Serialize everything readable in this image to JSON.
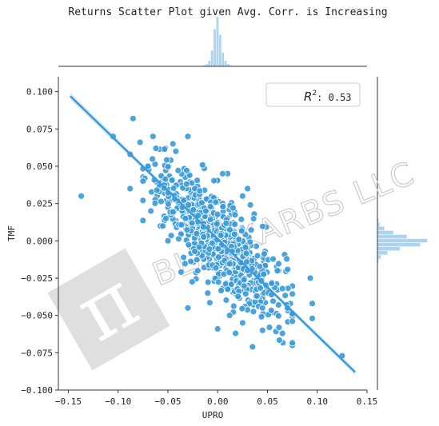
{
  "chart_data": {
    "type": "scatter",
    "title": "Returns Scatter Plot given Avg. Corr. is Increasing",
    "xlabel": "UPRO",
    "ylabel": "TMF",
    "xlim": [
      -0.16,
      0.15
    ],
    "ylim": [
      -0.1,
      0.11
    ],
    "x_ticks": [
      "−0.15",
      "−0.10",
      "−0.05",
      "0.00",
      "0.05",
      "0.10",
      "0.15"
    ],
    "y_ticks": [
      "0.100",
      "0.075",
      "0.050",
      "0.025",
      "0.000",
      "−0.025",
      "−0.050",
      "−0.075",
      "−0.100"
    ],
    "r2_label": "R",
    "r2_sup": "2",
    "r2_value": ": 0.53",
    "regression": {
      "x1": -0.148,
      "y1": 0.097,
      "x2": 0.138,
      "y2": -0.088
    },
    "grid": false,
    "point_color": "#3a9ad9",
    "line_color": "#3a9ad9",
    "hist_color": "#aed3ef",
    "marginal_x_counts": [
      1,
      2,
      5,
      14,
      33,
      44,
      28,
      12,
      5,
      2,
      1
    ],
    "marginal_x_range": [
      -0.015,
      0.015
    ],
    "marginal_y_counts": [
      1,
      3,
      9,
      20,
      38,
      44,
      26,
      14,
      6,
      2,
      1
    ],
    "marginal_y_range": [
      -0.015,
      0.015
    ],
    "notable_points": [
      [
        -0.137,
        0.03
      ],
      [
        -0.085,
        0.082
      ],
      [
        -0.078,
        0.066
      ],
      [
        -0.065,
        0.07
      ],
      [
        -0.062,
        0.062
      ],
      [
        -0.045,
        0.065
      ],
      [
        -0.042,
        0.06
      ],
      [
        -0.03,
        0.07
      ],
      [
        -0.105,
        0.07
      ],
      [
        -0.088,
        0.058
      ],
      [
        -0.088,
        0.035
      ],
      [
        -0.03,
        -0.045
      ],
      [
        0.0,
        -0.059
      ],
      [
        0.018,
        -0.062
      ],
      [
        0.035,
        -0.071
      ],
      [
        0.065,
        -0.062
      ],
      [
        0.052,
        -0.058
      ],
      [
        0.093,
        -0.025
      ],
      [
        0.095,
        -0.042
      ],
      [
        0.095,
        -0.052
      ],
      [
        0.125,
        -0.077
      ],
      [
        0.065,
        -0.032
      ],
      [
        0.06,
        -0.02
      ],
      [
        0.045,
        -0.045
      ],
      [
        0.07,
        -0.045
      ],
      [
        0.03,
        0.035
      ],
      [
        0.025,
        0.03
      ],
      [
        0.01,
        0.045
      ],
      [
        0.005,
        0.045
      ],
      [
        -0.055,
        0.01
      ],
      [
        -0.05,
        0.0
      ],
      [
        0.04,
        -0.01
      ],
      [
        0.03,
        -0.02
      ],
      [
        -0.02,
        -0.02
      ],
      [
        -0.01,
        -0.035
      ],
      [
        0.012,
        -0.05
      ],
      [
        0.025,
        -0.055
      ],
      [
        0.045,
        -0.06
      ],
      [
        -0.075,
        0.04
      ],
      [
        -0.07,
        0.05
      ]
    ],
    "cloud": {
      "n": 720,
      "center": [
        0.0,
        0.0
      ],
      "sx": 0.032,
      "slope": -0.6,
      "resid_sd": 0.02
    }
  },
  "watermark": {
    "text": "BLACKARBS LLC",
    "glyph": "π"
  }
}
